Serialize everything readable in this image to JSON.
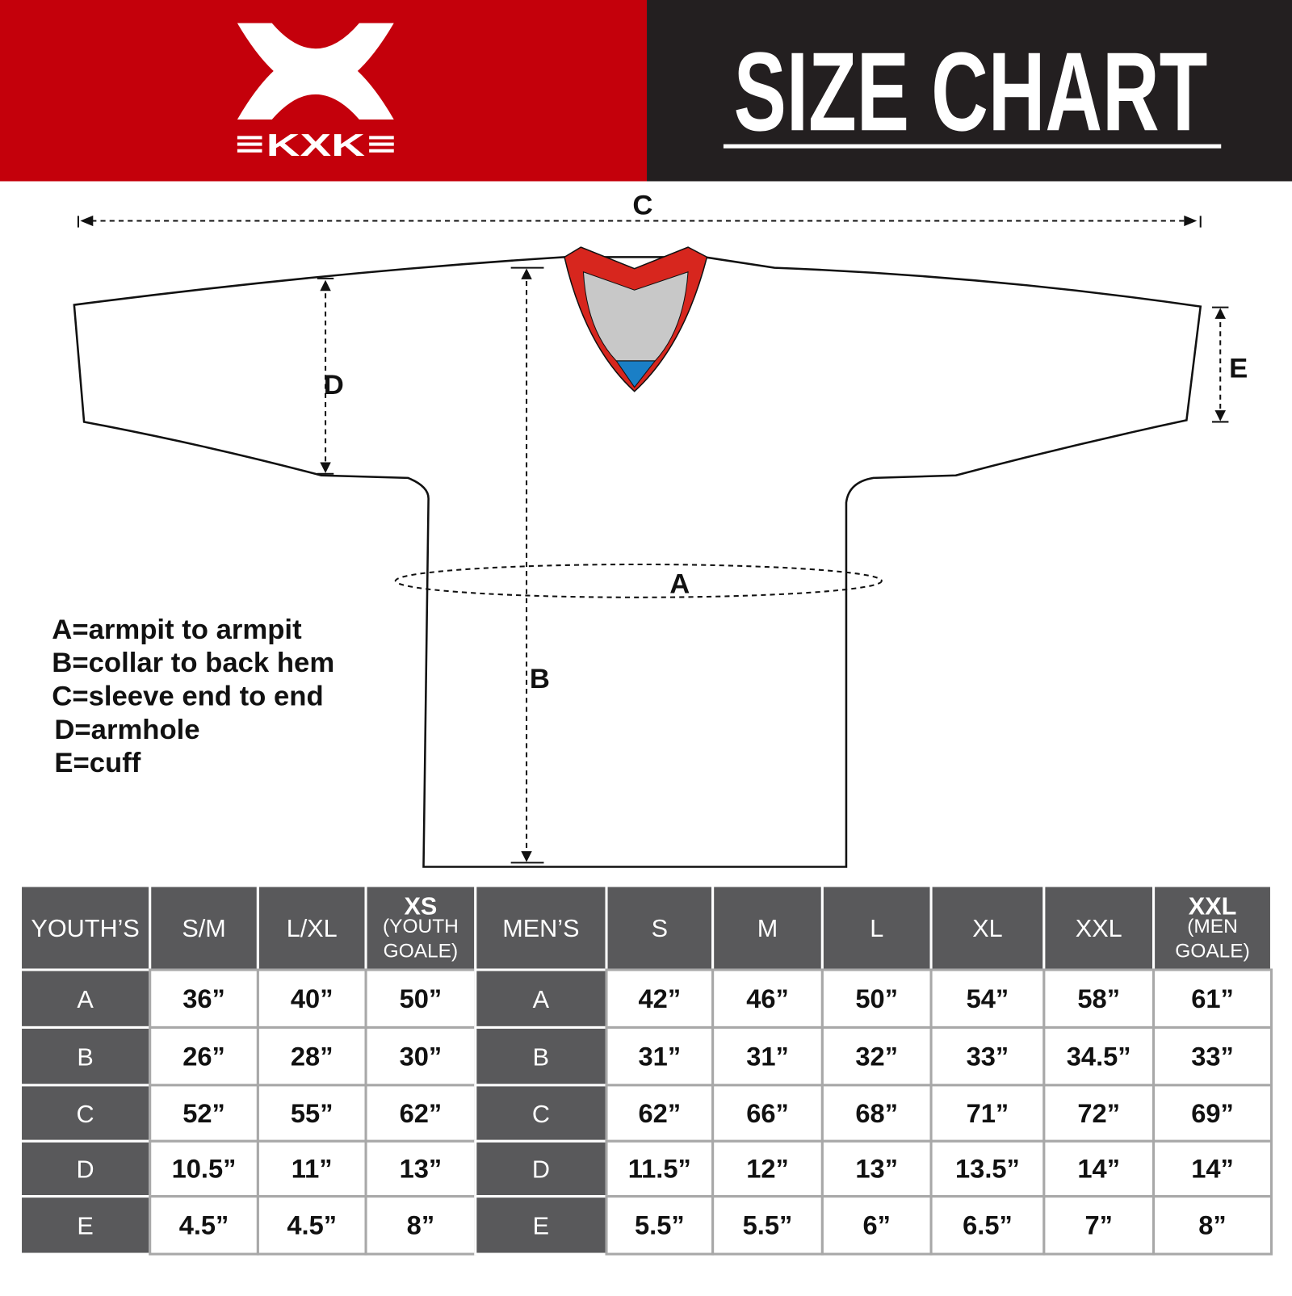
{
  "header": {
    "brand": "KXK",
    "title": "SIZE CHART"
  },
  "diagram": {
    "labels": [
      "C",
      "D",
      "B",
      "A",
      "E"
    ]
  },
  "legend": [
    "A=armpit to armpit",
    "B=collar to back hem",
    "C=sleeve end to end",
    "D=armhole",
    "E=cuff"
  ],
  "table": {
    "header": [
      "YOUTH’S",
      "S/M",
      "L/XL",
      {
        "main": "XS",
        "sub": "(YOUTH GOALE)"
      },
      "MEN’S",
      "S",
      "M",
      "L",
      "XL",
      "XXL",
      {
        "main": "XXL",
        "sub": "(MEN GOALE)"
      }
    ],
    "rows": [
      [
        "A",
        "36”",
        "40”",
        "50”",
        "A",
        "42”",
        "46”",
        "50”",
        "54”",
        "58”",
        "61”"
      ],
      [
        "B",
        "26”",
        "28”",
        "30”",
        "B",
        "31”",
        "31”",
        "32”",
        "33”",
        "34.5”",
        "33”"
      ],
      [
        "C",
        "52”",
        "55”",
        "62”",
        "C",
        "62”",
        "66”",
        "68”",
        "71”",
        "72”",
        "69”"
      ],
      [
        "D",
        "10.5”",
        "11”",
        "13”",
        "D",
        "11.5”",
        "12”",
        "13”",
        "13.5”",
        "14”",
        "14”"
      ],
      [
        "E",
        "4.5”",
        "4.5”",
        "8”",
        "E",
        "5.5”",
        "5.5”",
        "6”",
        "6.5”",
        "7”",
        "8”"
      ]
    ]
  }
}
